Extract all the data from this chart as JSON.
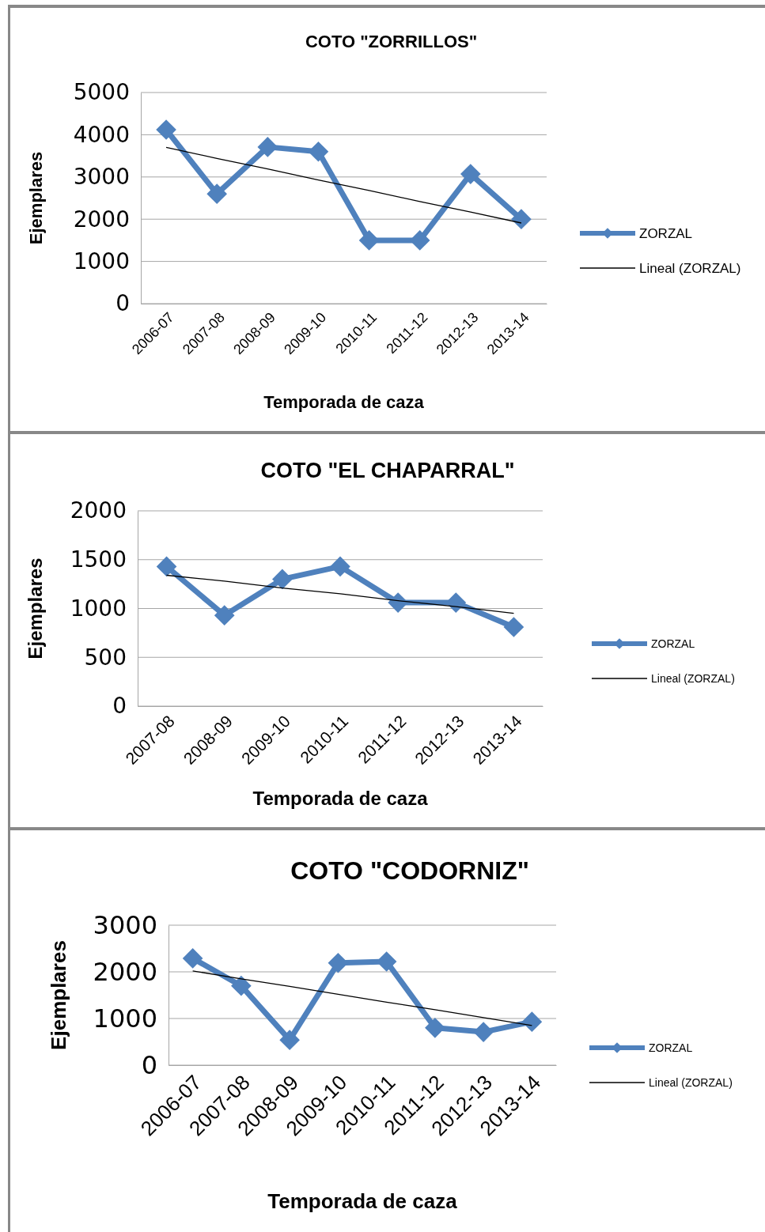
{
  "chart_data": [
    {
      "type": "line",
      "title": "COTO \"ZORRILLOS\"",
      "xlabel": "Temporada de caza",
      "ylabel": "Ejemplares",
      "categories": [
        "2006-07",
        "2007-08",
        "2008-09",
        "2009-10",
        "2010-11",
        "2011-12",
        "2012-13",
        "2013-14"
      ],
      "ylim": [
        0,
        5000
      ],
      "yticks": [
        0,
        1000,
        2000,
        3000,
        4000,
        5000
      ],
      "grid": "y",
      "legend": "right",
      "marker": "diamond",
      "series": [
        {
          "name": "ZORZAL",
          "color": "#4f81bd",
          "values": [
            4120,
            2600,
            3710,
            3600,
            1500,
            1500,
            3070,
            2000
          ]
        },
        {
          "name": "Lineal (ZORZAL)",
          "type": "line",
          "color": "#000000",
          "marker": "none",
          "values": [
            3700,
            3440,
            3190,
            2930,
            2680,
            2420,
            2170,
            1910
          ]
        }
      ]
    },
    {
      "type": "line",
      "title": "COTO \"EL CHAPARRAL\"",
      "xlabel": "Temporada de caza",
      "ylabel": "Ejemplares",
      "categories": [
        "2007-08",
        "2008-09",
        "2009-10",
        "2010-11",
        "2011-12",
        "2012-13",
        "2013-14"
      ],
      "ylim": [
        0,
        2000
      ],
      "yticks": [
        0,
        500,
        1000,
        1500,
        2000
      ],
      "grid": "y",
      "legend": "right",
      "marker": "diamond",
      "series": [
        {
          "name": "ZORZAL",
          "color": "#4f81bd",
          "values": [
            1430,
            930,
            1300,
            1430,
            1060,
            1060,
            810
          ]
        },
        {
          "name": "Lineal (ZORZAL)",
          "type": "line",
          "color": "#000000",
          "marker": "none",
          "values": [
            1340,
            1280,
            1210,
            1150,
            1080,
            1020,
            950
          ]
        }
      ]
    },
    {
      "type": "line",
      "title": "COTO \"CODORNIZ\"",
      "xlabel": "Temporada de caza",
      "ylabel": "Ejemplares",
      "categories": [
        "2006-07",
        "2007-08",
        "2008-09",
        "2009-10",
        "2010-11",
        "2011-12",
        "2012-13",
        "2013-14"
      ],
      "ylim": [
        0,
        3000
      ],
      "yticks": [
        0,
        1000,
        2000,
        3000
      ],
      "grid": "y",
      "legend": "right",
      "marker": "diamond",
      "series": [
        {
          "name": "ZORZAL",
          "color": "#4f81bd",
          "values": [
            2290,
            1700,
            540,
            2190,
            2220,
            800,
            710,
            930
          ]
        },
        {
          "name": "Lineal (ZORZAL)",
          "type": "line",
          "color": "#000000",
          "marker": "none",
          "values": [
            2020,
            1850,
            1690,
            1520,
            1350,
            1190,
            1020,
            850
          ]
        }
      ]
    }
  ]
}
